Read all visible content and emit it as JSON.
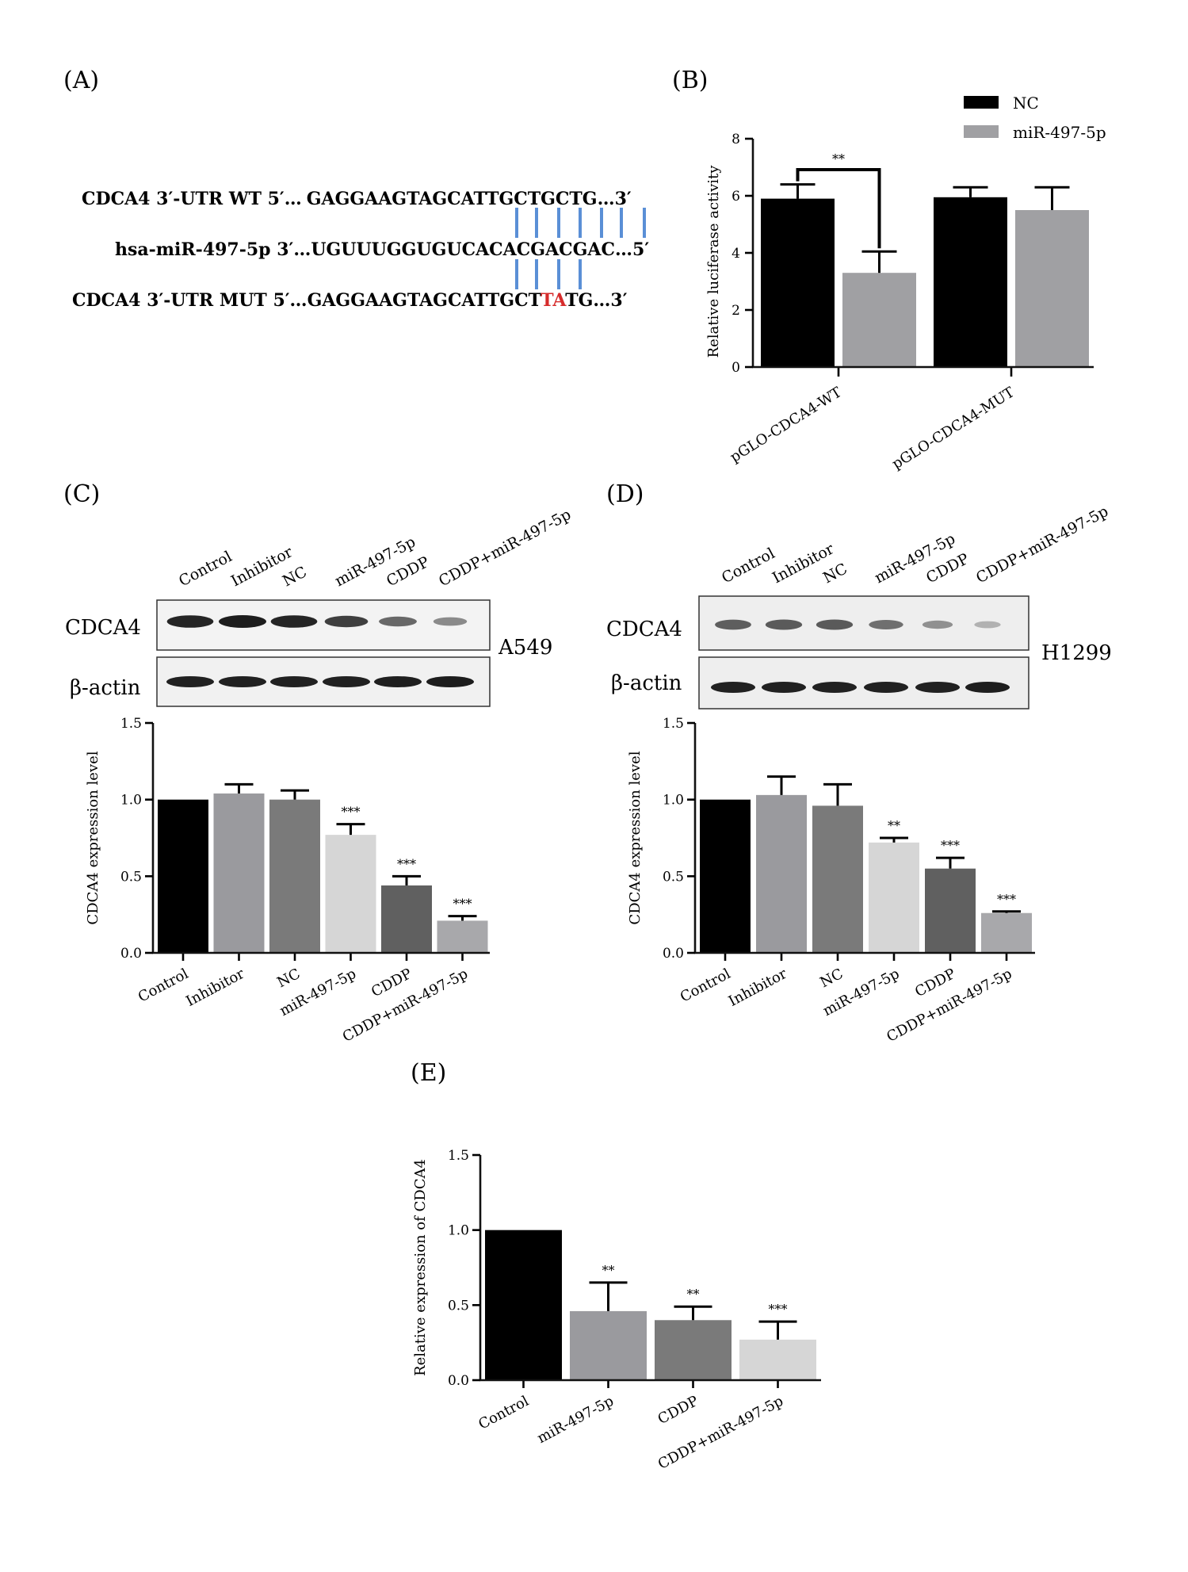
{
  "panels": {
    "A": {
      "label": "(A)",
      "rows": [
        {
          "name": "CDCA4 3′-UTR WT 5′…",
          "pre": "GAGGAAGTAGCATT",
          "mid": "GCTGCTG",
          "post": "…3′"
        },
        {
          "name": "hsa-miR-497-5p 3′…",
          "pre": "UGUUUGGUGUCACA",
          "mid": "CGACGAC",
          "post": "…5′"
        },
        {
          "name": "CDCA4 3′-UTR MUT 5′…",
          "pre": "GAGGAAGTAGCATT",
          "mid": "GCTTATG",
          "post": "…3′"
        }
      ],
      "mutation_color": "#d62b2b",
      "pair_color": "#5a8fd6"
    },
    "C": {
      "label": "(C)",
      "cell_line": "A549",
      "blot_rows": [
        "CDCA4",
        "β-actin"
      ]
    },
    "D": {
      "label": "(D)",
      "cell_line": "H1299",
      "blot_rows": [
        "CDCA4",
        "β-actin"
      ]
    },
    "E": {
      "label": "(E)"
    }
  },
  "chart_data": [
    {
      "id": "B",
      "label": "(B)",
      "type": "bar",
      "categories": [
        "pGLO-CDCA4-WT",
        "pGLO-CDCA4-MUT"
      ],
      "series": [
        {
          "name": "NC",
          "color": "#000000",
          "values": [
            5.9,
            5.95
          ],
          "errors": [
            0.5,
            0.35
          ]
        },
        {
          "name": "miR-497-5p",
          "color": "#a0a0a3",
          "values": [
            3.3,
            5.5
          ],
          "errors": [
            0.75,
            0.8
          ]
        }
      ],
      "ylabel": "Relative luciferase activity",
      "ylim": [
        0,
        8
      ],
      "yticks": [
        0,
        2,
        4,
        6,
        8
      ],
      "significance": "**",
      "legend_position": "top-right"
    },
    {
      "id": "C",
      "type": "bar",
      "categories": [
        "Control",
        "Inhibitor",
        "NC",
        "miR-497-5p",
        "CDDP",
        "CDDP+miR-497-5p"
      ],
      "values": [
        1.0,
        1.04,
        1.0,
        0.77,
        0.44,
        0.21
      ],
      "errors": [
        0,
        0.06,
        0.06,
        0.07,
        0.06,
        0.03
      ],
      "stars": [
        "",
        "",
        "",
        "***",
        "***",
        "***"
      ],
      "colors": [
        "#000000",
        "#9a9a9e",
        "#7a7a7a",
        "#d6d6d6",
        "#606060",
        "#a8a8ab"
      ],
      "ylabel": "CDCA4 expression level",
      "ylim": [
        0,
        1.5
      ],
      "yticks": [
        "0.0",
        "0.5",
        "1.0",
        "1.5"
      ]
    },
    {
      "id": "D",
      "type": "bar",
      "categories": [
        "Control",
        "Inhibitor",
        "NC",
        "miR-497-5p",
        "CDDP",
        "CDDP+miR-497-5p"
      ],
      "values": [
        1.0,
        1.03,
        0.96,
        0.72,
        0.55,
        0.26
      ],
      "errors": [
        0,
        0.12,
        0.14,
        0.03,
        0.07,
        0.01
      ],
      "stars": [
        "",
        "",
        "",
        "**",
        "***",
        "***"
      ],
      "colors": [
        "#000000",
        "#9a9a9e",
        "#7a7a7a",
        "#d6d6d6",
        "#606060",
        "#a8a8ab"
      ],
      "ylabel": "CDCA4 expression level",
      "ylim": [
        0,
        1.5
      ],
      "yticks": [
        "0.0",
        "0.5",
        "1.0",
        "1.5"
      ]
    },
    {
      "id": "E",
      "type": "bar",
      "categories": [
        "Control",
        "miR-497-5p",
        "CDDP",
        "CDDP+miR-497-5p"
      ],
      "values": [
        1.0,
        0.46,
        0.4,
        0.27
      ],
      "errors": [
        0,
        0.19,
        0.09,
        0.12
      ],
      "stars": [
        "",
        "**",
        "**",
        "***"
      ],
      "colors": [
        "#000000",
        "#9a9a9e",
        "#7a7a7a",
        "#d6d6d6"
      ],
      "ylabel": "Relative expression of CDCA4",
      "ylim": [
        0,
        1.5
      ],
      "yticks": [
        "0.0",
        "0.5",
        "1.0",
        "1.5"
      ]
    }
  ]
}
